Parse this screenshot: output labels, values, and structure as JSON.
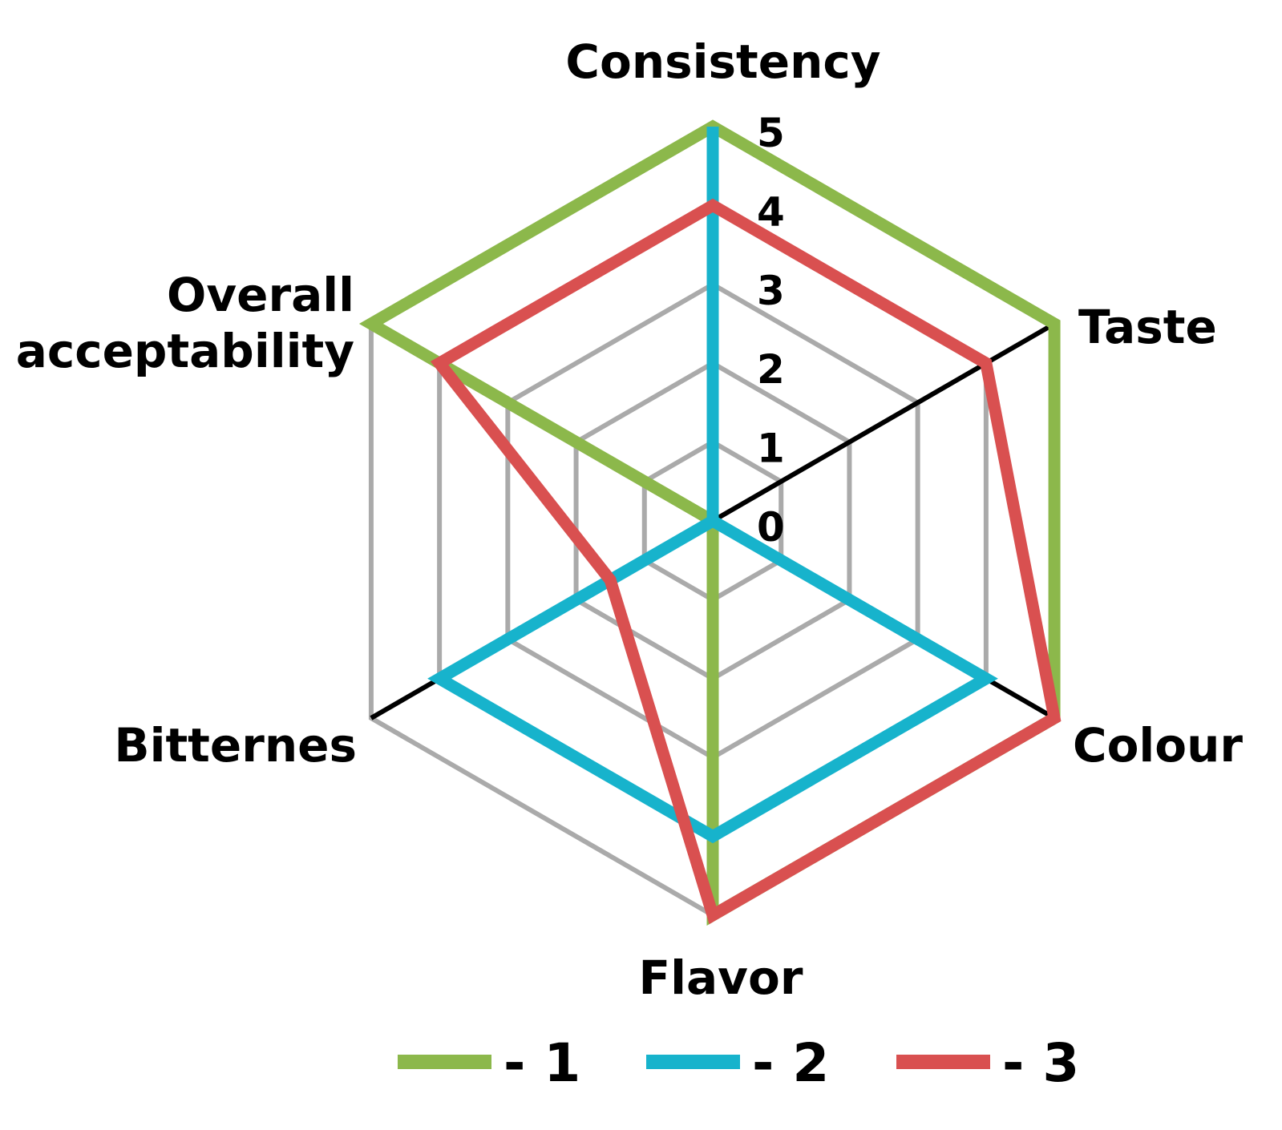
{
  "chart_data": {
    "type": "radar",
    "title": "",
    "axes": [
      "Consistency",
      "Taste",
      "Colour",
      "Flavor",
      "Bitternes",
      "Overall acceptability"
    ],
    "axis_label_lines": [
      [
        "Consistency"
      ],
      [
        "Taste"
      ],
      [
        "Colour"
      ],
      [
        "Flavor"
      ],
      [
        "Bitternes"
      ],
      [
        "Overall",
        "acceptability"
      ]
    ],
    "rlim": [
      0,
      5
    ],
    "ticks": [
      "0",
      "1",
      "2",
      "3",
      "4",
      "5"
    ],
    "grid": true,
    "legend_position": "bottom",
    "series": [
      {
        "name": "- 1",
        "color": "#8CB84B",
        "values": [
          5,
          5,
          5,
          5,
          0,
          5
        ]
      },
      {
        "name": "- 2",
        "color": "#17B3CC",
        "values": [
          5,
          0,
          4,
          4,
          4,
          0
        ]
      },
      {
        "name": "- 3",
        "color": "#D95050",
        "values": [
          4,
          4,
          5,
          5,
          1.5,
          4
        ]
      }
    ]
  },
  "colors": {
    "grid": "#AAAAAA",
    "axis": "#000000"
  }
}
